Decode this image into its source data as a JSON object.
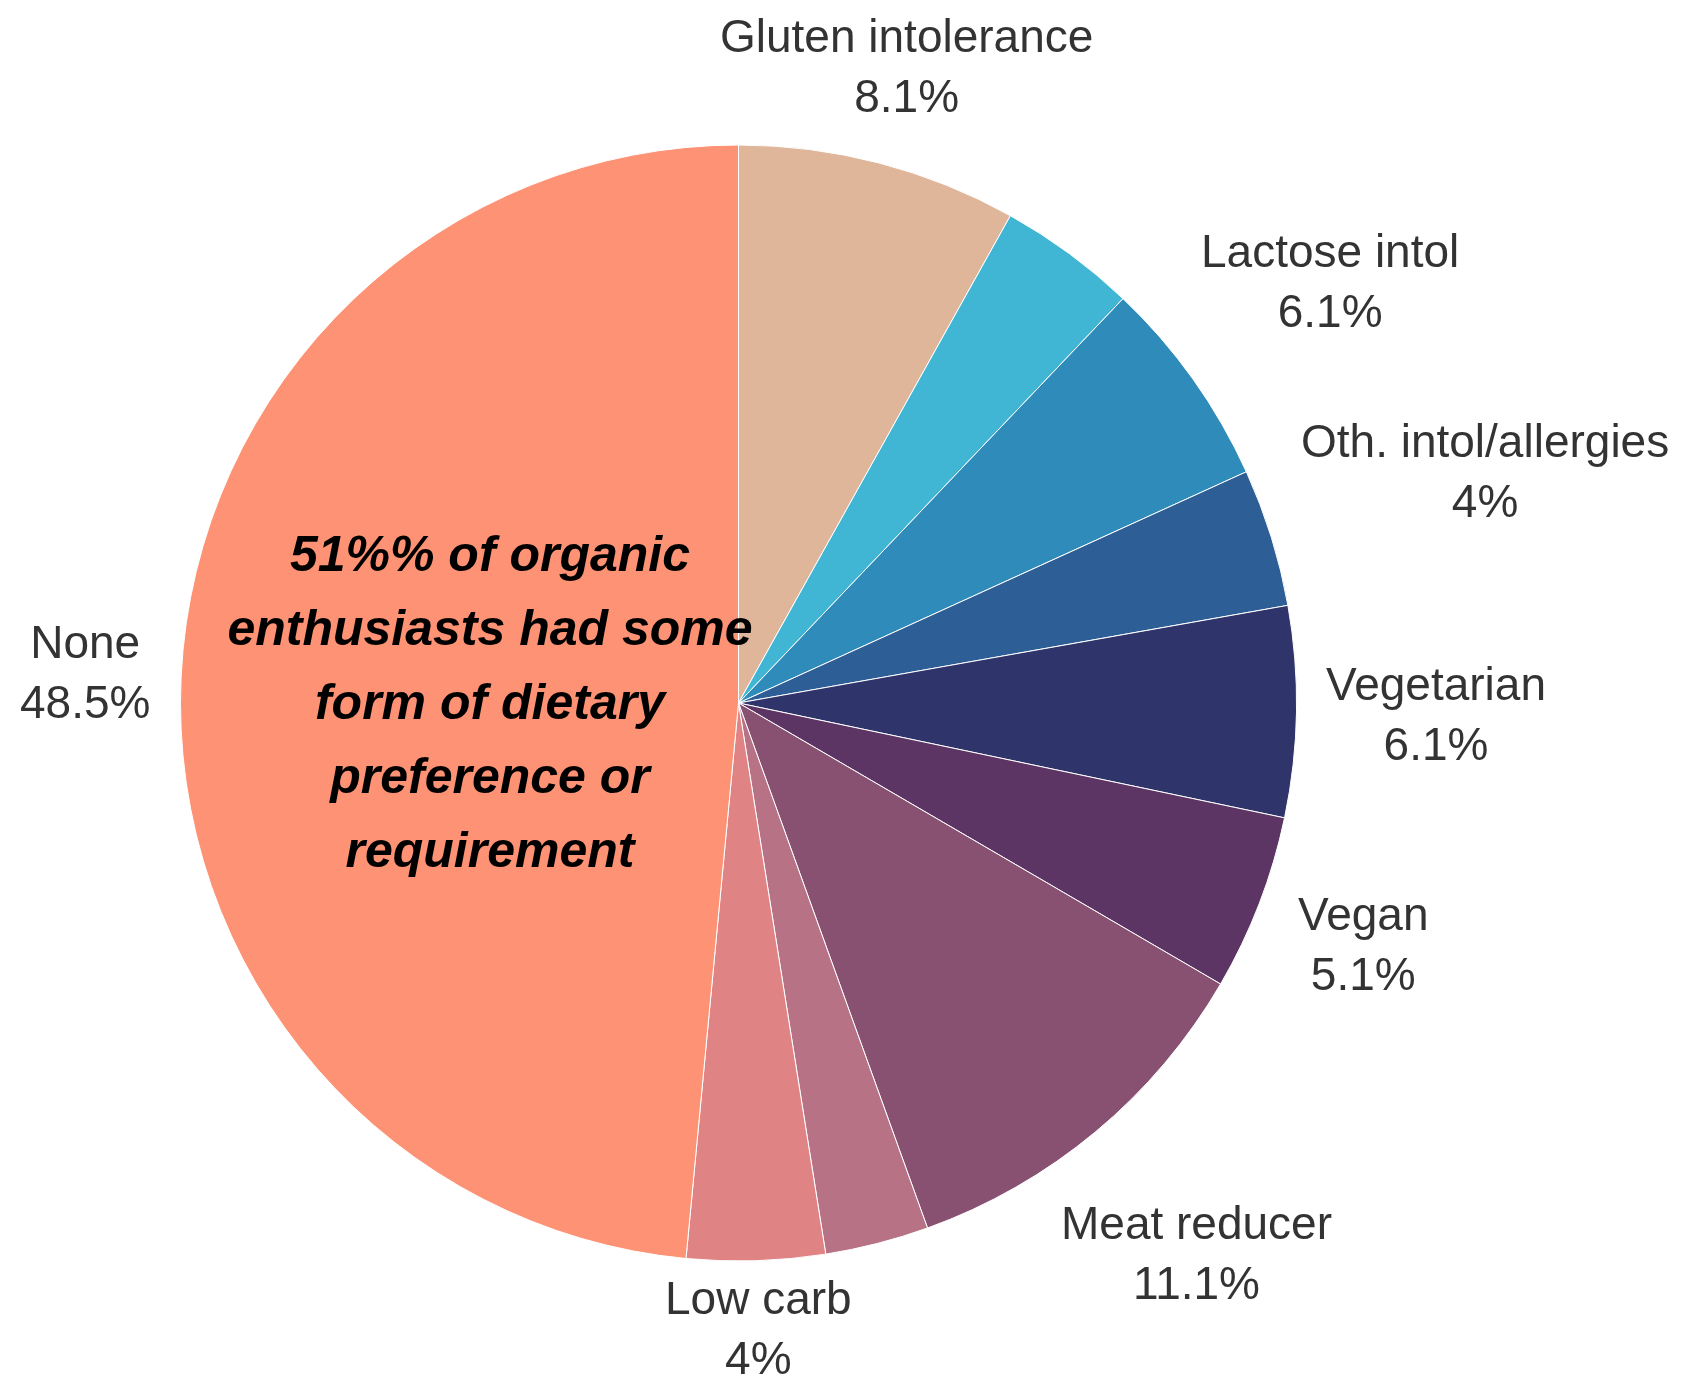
{
  "chart_data": {
    "type": "pie",
    "categories": [
      "Gluten intolerance",
      null,
      "Lactose intol",
      "Oth. intol/allergies",
      "Vegetarian",
      "Vegan",
      "Meat reducer",
      null,
      "Low carb",
      "None"
    ],
    "values": [
      8.1,
      4,
      6.1,
      4,
      6.1,
      5.1,
      11.1,
      3,
      4,
      48.5
    ],
    "value_labels": [
      "8.1%",
      null,
      "6.1%",
      "4%",
      "6.1%",
      "5.1%",
      "11.1%",
      null,
      "4%",
      "48.5%"
    ],
    "colors": [
      "#dfb69a",
      "#41b6d4",
      "#2e8bba",
      "#2e5e96",
      "#2f346b",
      "#5d3565",
      "#885172",
      "#b87285",
      "#e08385",
      "#fe9274"
    ],
    "annotations": [
      "51%% of organic enthusiasts had some form of dietary preference or requirement"
    ],
    "legend": false
  }
}
